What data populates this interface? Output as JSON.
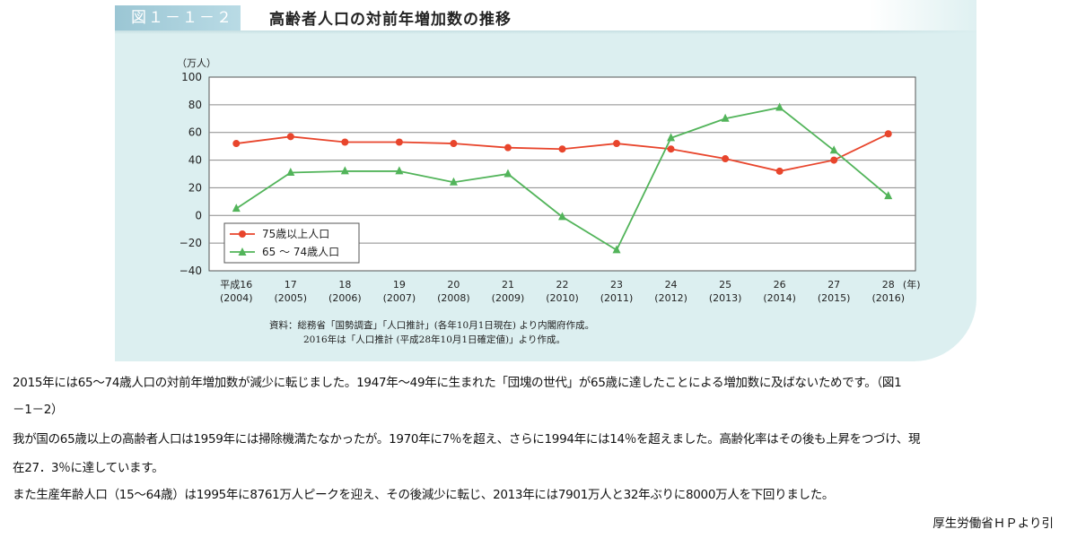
{
  "figure": {
    "label": "図１－１－２",
    "title": "高齢者人口の対前年増加数の推移",
    "note_line1": "資料：総務省「国勢調査」「人口推計」(各年10月1日現在) より内閣府作成。",
    "note_line2": "2016年は「人口推計 (平成28年10月1日確定値)」より作成。"
  },
  "chart_data": {
    "type": "line",
    "ylabel": "（万人）",
    "xlabel_unit": "(年)",
    "ylim": [
      -40,
      100
    ],
    "yticks": [
      100,
      80,
      60,
      40,
      20,
      0,
      -20,
      -40
    ],
    "grid": true,
    "legend_position": "bottom-left",
    "categories": [
      {
        "top": "平成16",
        "bottom": "(2004)"
      },
      {
        "top": "17",
        "bottom": "(2005)"
      },
      {
        "top": "18",
        "bottom": "(2006)"
      },
      {
        "top": "19",
        "bottom": "(2007)"
      },
      {
        "top": "20",
        "bottom": "(2008)"
      },
      {
        "top": "21",
        "bottom": "(2009)"
      },
      {
        "top": "22",
        "bottom": "(2010)"
      },
      {
        "top": "23",
        "bottom": "(2011)"
      },
      {
        "top": "24",
        "bottom": "(2012)"
      },
      {
        "top": "25",
        "bottom": "(2013)"
      },
      {
        "top": "26",
        "bottom": "(2014)"
      },
      {
        "top": "27",
        "bottom": "(2015)"
      },
      {
        "top": "28",
        "bottom": "(2016)"
      }
    ],
    "series": [
      {
        "name": "75歳以上人口",
        "color": "#e8452c",
        "marker": "circle",
        "values": [
          52,
          57,
          53,
          53,
          52,
          49,
          48,
          52,
          48,
          41,
          32,
          40,
          59
        ]
      },
      {
        "name": "65 ～ 74歳人口",
        "color": "#52b45a",
        "marker": "triangle",
        "values": [
          5,
          31,
          32,
          32,
          24,
          30,
          -1,
          -25,
          56,
          70,
          78,
          47,
          14
        ]
      }
    ]
  },
  "body": {
    "para1_line1": "2015年には65～74歳人口の対前年増加数が減少に転じました。1947年～49年に生まれた「団塊の世代」が65歳に達したことによる増加数に及ばないためです。（図1",
    "para1_line2": "－1－2）",
    "para2_line1": "我が国の65歳以上の高齢者人口は1959年には掃除機満たなかったが。1970年に7％を超え、さらに1994年には14％を超えました。高齢化率はその後も上昇をつづけ、現",
    "para2_line2": "在27．3％に達しています。",
    "para3_line1": "また生産年齢人口（15～64歳）は1995年に8761万人ピークを迎え、その後減少に転じ、2013年には7901万人と32年ぶりに8000万人を下回りました。",
    "source": "厚生労働省ＨＰより引"
  }
}
